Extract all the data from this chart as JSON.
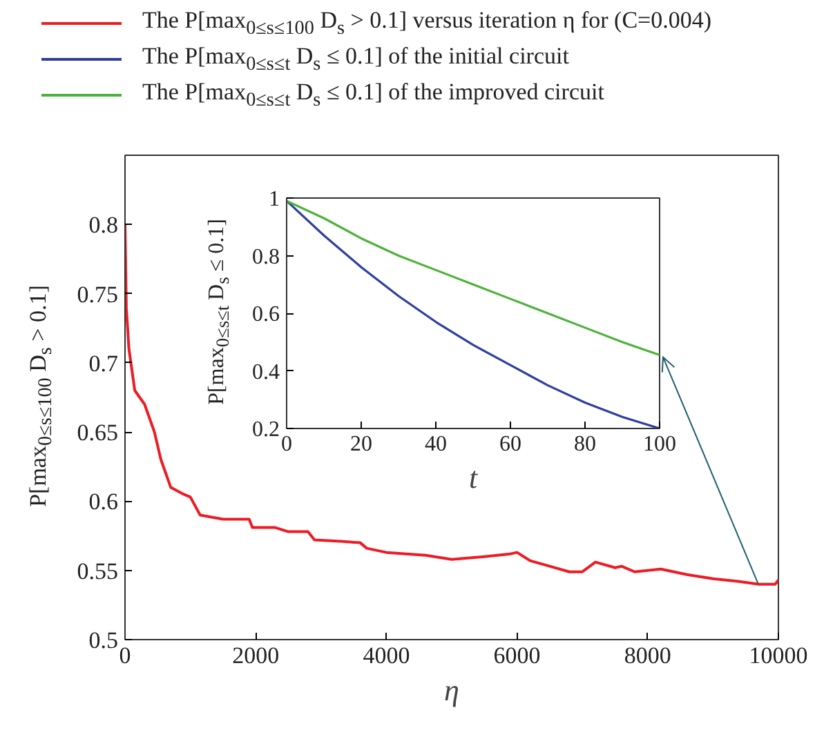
{
  "chart_data": [
    {
      "type": "line",
      "xlabel": "η",
      "ylabel": "P[max$_{0≤s≤100}$ D$_{s}$ > 0.1]",
      "xlim": [
        0,
        10000
      ],
      "ylim": [
        0.5,
        0.85
      ],
      "xticks": [
        0,
        2000,
        4000,
        6000,
        8000,
        10000
      ],
      "yticks": [
        0.5,
        0.55,
        0.6,
        0.65,
        0.7,
        0.75,
        0.8
      ],
      "grid": false,
      "legend": "top",
      "series": [
        {
          "name": "The P[max$_{0≤s≤100}$ D$_{s}$ > 0.1] versus iteration η for (C=0.004)",
          "color": "#ed1c24",
          "x": [
            0,
            20,
            60,
            150,
            300,
            450,
            550,
            700,
            900,
            1000,
            1150,
            1500,
            1900,
            1950,
            2300,
            2500,
            2800,
            2900,
            3300,
            3600,
            3700,
            4000,
            4600,
            5000,
            5500,
            5900,
            6000,
            6200,
            6500,
            6800,
            7000,
            7200,
            7500,
            7600,
            7800,
            8200,
            8600,
            9000,
            9400,
            9700,
            9950,
            10000
          ],
          "values": [
            0.8,
            0.74,
            0.71,
            0.68,
            0.67,
            0.65,
            0.63,
            0.61,
            0.605,
            0.603,
            0.59,
            0.587,
            0.587,
            0.581,
            0.581,
            0.578,
            0.578,
            0.572,
            0.571,
            0.57,
            0.566,
            0.563,
            0.561,
            0.558,
            0.56,
            0.562,
            0.563,
            0.557,
            0.553,
            0.549,
            0.549,
            0.556,
            0.552,
            0.553,
            0.549,
            0.551,
            0.547,
            0.544,
            0.542,
            0.54,
            0.54,
            0.543
          ]
        }
      ]
    },
    {
      "type": "line",
      "xlabel": "t",
      "ylabel": "P[max$_{0≤s≤t}$ D$_{s}$ ≤ 0.1]",
      "xlim": [
        0,
        100
      ],
      "ylim": [
        0.2,
        1
      ],
      "xticks": [
        0,
        20,
        40,
        60,
        80,
        100
      ],
      "yticks": [
        0.2,
        0.4,
        0.6,
        0.8,
        1
      ],
      "grid": false,
      "legend": "top",
      "x": [
        0,
        10,
        20,
        30,
        40,
        50,
        60,
        70,
        80,
        90,
        100
      ],
      "series": [
        {
          "name": "The P[max$_{0≤s≤t}$ D$_{s}$ ≤ 0.1] of the initial circuit",
          "color": "#2e3f9e",
          "values": [
            0.99,
            0.87,
            0.76,
            0.66,
            0.57,
            0.49,
            0.42,
            0.35,
            0.29,
            0.24,
            0.2
          ]
        },
        {
          "name": "The P[max$_{0≤s≤t}$ D$_{s}$ ≤ 0.1] of the improved circuit",
          "color": "#4cb33a",
          "values": [
            0.99,
            0.93,
            0.86,
            0.8,
            0.75,
            0.7,
            0.65,
            0.6,
            0.55,
            0.5,
            0.455
          ]
        }
      ]
    }
  ]
}
